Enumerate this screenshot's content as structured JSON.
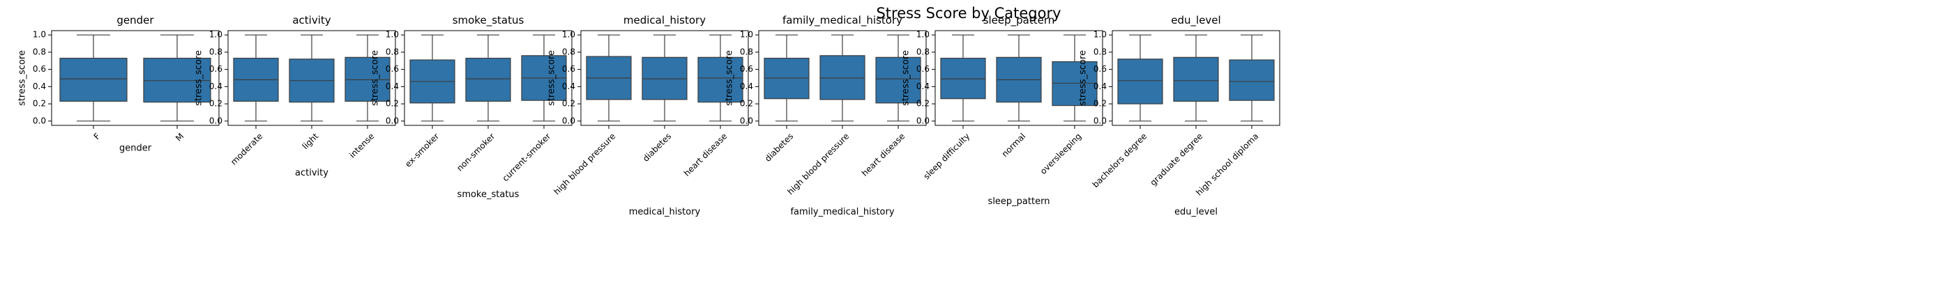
{
  "figure_title": "Stress Score by Category",
  "box_color": "#2f73a8",
  "edge_color": "#3d3d3d",
  "chart_data": [
    {
      "type": "box",
      "title": "gender",
      "xlabel": "gender",
      "ylabel": "stress_score",
      "ylim": [
        -0.05,
        1.05
      ],
      "yticks": [
        0.0,
        0.2,
        0.4,
        0.6,
        0.8,
        1.0
      ],
      "ytick_labels": [
        "0.0",
        "0.2",
        "0.4",
        "0.6",
        "0.8",
        "1.0"
      ],
      "categories": [
        "F",
        "M"
      ],
      "boxes": [
        {
          "min": 0.0,
          "q1": 0.23,
          "median": 0.49,
          "q3": 0.73,
          "max": 1.0
        },
        {
          "min": 0.0,
          "q1": 0.22,
          "median": 0.47,
          "q3": 0.73,
          "max": 1.0
        }
      ]
    },
    {
      "type": "box",
      "title": "activity",
      "xlabel": "activity",
      "ylabel": "stress_score",
      "ylim": [
        -0.05,
        1.05
      ],
      "yticks": [
        0.0,
        0.2,
        0.4,
        0.6,
        0.8,
        1.0
      ],
      "ytick_labels": [
        "0.0",
        "0.2",
        "0.4",
        "0.6",
        "0.8",
        "1.0"
      ],
      "categories": [
        "moderate",
        "light",
        "intense"
      ],
      "boxes": [
        {
          "min": 0.0,
          "q1": 0.23,
          "median": 0.48,
          "q3": 0.73,
          "max": 1.0
        },
        {
          "min": 0.0,
          "q1": 0.22,
          "median": 0.47,
          "q3": 0.72,
          "max": 1.0
        },
        {
          "min": 0.0,
          "q1": 0.23,
          "median": 0.48,
          "q3": 0.74,
          "max": 1.0
        }
      ]
    },
    {
      "type": "box",
      "title": "smoke_status",
      "xlabel": "smoke_status",
      "ylabel": "stress_score",
      "ylim": [
        -0.05,
        1.05
      ],
      "yticks": [
        0.0,
        0.2,
        0.4,
        0.6,
        0.8,
        1.0
      ],
      "ytick_labels": [
        "0.0",
        "0.2",
        "0.4",
        "0.6",
        "0.8",
        "1.0"
      ],
      "categories": [
        "ex-smoker",
        "non-smoker",
        "current-smoker"
      ],
      "boxes": [
        {
          "min": 0.0,
          "q1": 0.21,
          "median": 0.46,
          "q3": 0.71,
          "max": 1.0
        },
        {
          "min": 0.0,
          "q1": 0.23,
          "median": 0.49,
          "q3": 0.73,
          "max": 1.0
        },
        {
          "min": 0.0,
          "q1": 0.24,
          "median": 0.5,
          "q3": 0.76,
          "max": 1.0
        }
      ]
    },
    {
      "type": "box",
      "title": "medical_history",
      "xlabel": "medical_history",
      "ylabel": "stress_score",
      "ylim": [
        -0.05,
        1.05
      ],
      "yticks": [
        0.0,
        0.2,
        0.4,
        0.6,
        0.8,
        1.0
      ],
      "ytick_labels": [
        "0.0",
        "0.2",
        "0.4",
        "0.6",
        "0.8",
        "1.0"
      ],
      "categories": [
        "high blood pressure",
        "diabetes",
        "heart disease"
      ],
      "boxes": [
        {
          "min": 0.0,
          "q1": 0.25,
          "median": 0.5,
          "q3": 0.75,
          "max": 1.0
        },
        {
          "min": 0.0,
          "q1": 0.25,
          "median": 0.49,
          "q3": 0.74,
          "max": 1.0
        },
        {
          "min": 0.0,
          "q1": 0.22,
          "median": 0.5,
          "q3": 0.74,
          "max": 1.0
        }
      ]
    },
    {
      "type": "box",
      "title": "family_medical_history",
      "xlabel": "family_medical_history",
      "ylabel": "stress_score",
      "ylim": [
        -0.05,
        1.05
      ],
      "yticks": [
        0.0,
        0.2,
        0.4,
        0.6,
        0.8,
        1.0
      ],
      "ytick_labels": [
        "0.0",
        "0.2",
        "0.4",
        "0.6",
        "0.8",
        "1.0"
      ],
      "categories": [
        "diabetes",
        "high blood pressure",
        "heart disease"
      ],
      "boxes": [
        {
          "min": 0.0,
          "q1": 0.26,
          "median": 0.5,
          "q3": 0.73,
          "max": 1.0
        },
        {
          "min": 0.0,
          "q1": 0.25,
          "median": 0.5,
          "q3": 0.76,
          "max": 1.0
        },
        {
          "min": 0.0,
          "q1": 0.21,
          "median": 0.49,
          "q3": 0.74,
          "max": 1.0
        }
      ]
    },
    {
      "type": "box",
      "title": "sleep_pattern",
      "xlabel": "sleep_pattern",
      "ylabel": "stress_score",
      "ylim": [
        -0.05,
        1.05
      ],
      "yticks": [
        0.0,
        0.2,
        0.4,
        0.6,
        0.8,
        1.0
      ],
      "ytick_labels": [
        "0.0",
        "0.2",
        "0.4",
        "0.6",
        "0.8",
        "1.0"
      ],
      "categories": [
        "sleep difficulty",
        "normal",
        "oversleeping"
      ],
      "boxes": [
        {
          "min": 0.0,
          "q1": 0.26,
          "median": 0.49,
          "q3": 0.73,
          "max": 1.0
        },
        {
          "min": 0.0,
          "q1": 0.22,
          "median": 0.48,
          "q3": 0.74,
          "max": 1.0
        },
        {
          "min": 0.0,
          "q1": 0.18,
          "median": 0.44,
          "q3": 0.69,
          "max": 1.0
        }
      ]
    },
    {
      "type": "box",
      "title": "edu_level",
      "xlabel": "edu_level",
      "ylabel": "stress_score",
      "ylim": [
        -0.05,
        1.05
      ],
      "yticks": [
        0.0,
        0.2,
        0.4,
        0.6,
        0.8,
        1.0
      ],
      "ytick_labels": [
        "0.0",
        "0.2",
        "0.4",
        "0.6",
        "0.8",
        "1.0"
      ],
      "categories": [
        "bachelors degree",
        "graduate degree",
        "high school diploma"
      ],
      "boxes": [
        {
          "min": 0.0,
          "q1": 0.2,
          "median": 0.47,
          "q3": 0.72,
          "max": 1.0
        },
        {
          "min": 0.0,
          "q1": 0.23,
          "median": 0.47,
          "q3": 0.74,
          "max": 1.0
        },
        {
          "min": 0.0,
          "q1": 0.24,
          "median": 0.46,
          "q3": 0.71,
          "max": 1.0
        }
      ]
    }
  ]
}
